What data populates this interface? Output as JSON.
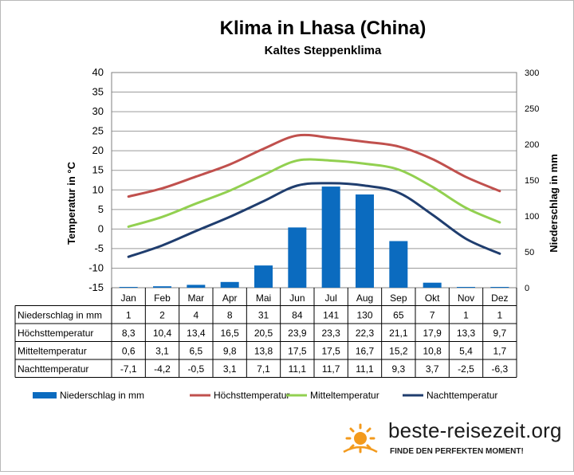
{
  "chart_data": {
    "type": "bar+line",
    "title": "Klima in Lhasa (China)",
    "subtitle": "Kaltes Steppenklima",
    "categories": [
      "Jan",
      "Feb",
      "Mar",
      "Apr",
      "Mai",
      "Jun",
      "Jul",
      "Aug",
      "Sep",
      "Okt",
      "Nov",
      "Dez"
    ],
    "y_left_label": "Temperatur in °C",
    "y_left_range": [
      -15,
      40
    ],
    "y_left_ticks": [
      "40",
      "35",
      "30",
      "25",
      "20",
      "15",
      "10",
      "5",
      "0",
      "-5",
      "-10",
      "-15"
    ],
    "y_right_label": "Niederschlag in mm",
    "y_right_range": [
      0,
      300
    ],
    "y_right_ticks": [
      "300",
      "250",
      "200",
      "150",
      "100",
      "50",
      "0"
    ],
    "grid": true,
    "legend_position": "bottom",
    "series": [
      {
        "name": "Niederschlag in mm",
        "type": "bar",
        "axis": "right",
        "color": "#0b6bbf",
        "values": [
          1,
          2,
          4,
          8,
          31,
          84,
          141,
          130,
          65,
          7,
          1,
          1
        ],
        "labels": [
          "1",
          "2",
          "4",
          "8",
          "31",
          "84",
          "141",
          "130",
          "65",
          "7",
          "1",
          "1"
        ]
      },
      {
        "name": "Höchsttemperatur",
        "type": "line",
        "axis": "left",
        "color": "#c0504d",
        "values": [
          8.3,
          10.4,
          13.4,
          16.5,
          20.5,
          23.9,
          23.3,
          22.3,
          21.1,
          17.9,
          13.3,
          9.7
        ],
        "labels": [
          "8,3",
          "10,4",
          "13,4",
          "16,5",
          "20,5",
          "23,9",
          "23,3",
          "22,3",
          "21,1",
          "17,9",
          "13,3",
          "9,7"
        ]
      },
      {
        "name": "Mitteltemperatur",
        "type": "line",
        "axis": "left",
        "color": "#92d050",
        "values": [
          0.6,
          3.1,
          6.5,
          9.8,
          13.8,
          17.5,
          17.5,
          16.7,
          15.2,
          10.8,
          5.4,
          1.7
        ],
        "labels": [
          "0,6",
          "3,1",
          "6,5",
          "9,8",
          "13,8",
          "17,5",
          "17,5",
          "16,7",
          "15,2",
          "10,8",
          "5,4",
          "1,7"
        ]
      },
      {
        "name": "Nachttemperatur",
        "type": "line",
        "axis": "left",
        "color": "#1f3d6e",
        "values": [
          -7.1,
          -4.2,
          -0.5,
          3.1,
          7.1,
          11.1,
          11.7,
          11.1,
          9.3,
          3.7,
          -2.5,
          -6.3
        ],
        "labels": [
          "-7,1",
          "-4,2",
          "-0,5",
          "3,1",
          "7,1",
          "11,1",
          "11,7",
          "11,1",
          "9,3",
          "3,7",
          "-2,5",
          "-6,3"
        ]
      }
    ]
  },
  "branding": {
    "site": "beste-reisezeit.org",
    "tagline": "FINDE DEN PERFEKTEN MOMENT!"
  }
}
